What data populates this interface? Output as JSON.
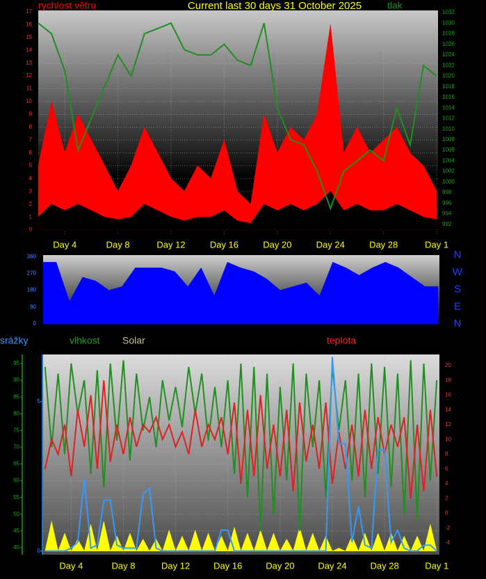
{
  "chart_data": [
    {
      "type": "line",
      "title": "Current last 30 days 31 October 2025",
      "grid": true,
      "x": [
        0,
        1,
        2,
        3,
        4,
        5,
        6,
        7,
        8,
        9,
        10,
        11,
        12,
        13,
        14,
        15,
        16,
        17,
        18,
        19,
        20,
        21,
        22,
        23,
        24,
        25,
        26,
        27,
        28,
        29,
        30
      ],
      "xlim": [
        0,
        30.1
      ],
      "xticks": [
        {
          "value": 2,
          "label": "Day 4"
        },
        {
          "value": 6,
          "label": "Day 8"
        },
        {
          "value": 10,
          "label": "Day 12"
        },
        {
          "value": 14,
          "label": "Day 16"
        },
        {
          "value": 18,
          "label": "Day 20"
        },
        {
          "value": 22,
          "label": "Day 24"
        },
        {
          "value": 26,
          "label": "Day 28"
        },
        {
          "value": 30,
          "label": "Day 1"
        }
      ],
      "ylim": [
        -0.4,
        17.1
      ],
      "yticks": [
        0,
        1,
        2,
        3,
        4,
        5,
        6,
        7,
        8,
        9,
        10,
        11,
        12,
        13,
        14,
        15,
        16,
        17
      ],
      "y2lim": [
        990,
        1032.4
      ],
      "y2ticks": [
        992,
        994,
        996,
        998,
        1000,
        1002,
        1004,
        1006,
        1008,
        1010,
        1012,
        1014,
        1016,
        1018,
        1020,
        1022,
        1024,
        1026,
        1028,
        1030,
        1032
      ],
      "series": [
        {
          "name": "rychlost větru",
          "color": "#ff0000",
          "style": "area",
          "values": [
            5,
            10,
            6,
            9,
            7,
            5,
            3,
            5,
            8,
            6,
            4,
            3,
            5,
            4,
            7,
            3,
            2,
            9,
            6,
            8,
            7,
            9,
            16,
            6,
            8,
            6,
            7,
            8,
            6,
            5,
            3
          ]
        },
        {
          "color": "#000000",
          "style": "area",
          "values": [
            1,
            2,
            1.5,
            2,
            1.5,
            1,
            0.8,
            1,
            2,
            1.5,
            1,
            0.7,
            1,
            1,
            1.5,
            0.7,
            0.5,
            2,
            1.5,
            2,
            1.5,
            2,
            3,
            1.5,
            2,
            1.5,
            1.5,
            2,
            1.5,
            1,
            0.8
          ]
        },
        {
          "name": "tlak",
          "color": "#1f8f1f",
          "style": "line",
          "axis": "y2",
          "values": [
            1030,
            1028,
            1021,
            1006,
            1012,
            1018,
            1024,
            1020,
            1028,
            1029,
            1030,
            1025,
            1024,
            1024,
            1026,
            1023,
            1022,
            1030,
            1014,
            1008,
            1007,
            1002,
            995,
            1002,
            1004,
            1006,
            1004,
            1014,
            1007,
            1022,
            1020
          ]
        }
      ]
    },
    {
      "type": "line",
      "grid": false,
      "x": [
        0,
        1,
        2,
        3,
        4,
        5,
        6,
        7,
        8,
        9,
        10,
        11,
        12,
        13,
        14,
        15,
        16,
        17,
        18,
        19,
        20,
        21,
        22,
        23,
        24,
        25,
        26,
        27,
        28,
        29,
        30
      ],
      "xlim": [
        0,
        30.1
      ],
      "ylim": [
        -7,
        368
      ],
      "yticks": [
        0,
        90,
        180,
        270,
        360
      ],
      "side_labels": [
        "N",
        "W",
        "S",
        "E",
        "N"
      ],
      "series": [
        {
          "color": "#0000ff",
          "style": "area",
          "values": [
            330,
            330,
            120,
            250,
            230,
            180,
            200,
            300,
            300,
            300,
            280,
            200,
            300,
            150,
            330,
            300,
            280,
            240,
            180,
            200,
            220,
            150,
            330,
            300,
            260,
            300,
            330,
            300,
            250,
            200,
            200
          ]
        }
      ]
    },
    {
      "type": "line",
      "grid": true,
      "x": [
        0,
        0.5,
        1,
        1.5,
        2,
        2.5,
        3,
        3.5,
        4,
        4.5,
        5,
        5.5,
        6,
        6.5,
        7,
        7.5,
        8,
        8.5,
        9,
        9.5,
        10,
        10.5,
        11,
        11.5,
        12,
        12.5,
        13,
        13.5,
        14,
        14.5,
        15,
        15.5,
        16,
        16.5,
        17,
        17.5,
        18,
        18.5,
        19,
        19.5,
        20,
        20.5,
        21,
        21.5,
        22,
        22.5,
        23,
        23.5,
        24,
        24.5,
        25,
        25.5,
        26,
        26.5,
        27,
        27.5,
        28,
        28.5,
        29,
        29.5,
        30
      ],
      "xlim": [
        -0.15,
        30.2
      ],
      "xticks": [
        {
          "value": 2,
          "label": "Day 4"
        },
        {
          "value": 6,
          "label": "Day 8"
        },
        {
          "value": 10,
          "label": "Day 12"
        },
        {
          "value": 14,
          "label": "Day 16"
        },
        {
          "value": 18,
          "label": "Day 20"
        },
        {
          "value": 22,
          "label": "Day 24"
        },
        {
          "value": 26,
          "label": "Day 28"
        },
        {
          "value": 30,
          "label": "Day 1"
        }
      ],
      "ylim": [
        37.9,
        97.7
      ],
      "yticks": [
        40,
        45,
        50,
        55,
        60,
        65,
        70,
        75,
        80,
        85,
        90,
        95
      ],
      "y2lim": [
        -5.6,
        21.5
      ],
      "y2ticks": [
        -4,
        -2,
        0,
        2,
        4,
        6,
        8,
        10,
        12,
        14,
        16,
        18,
        20
      ],
      "y3lim": [
        -0.12,
        6.58
      ],
      "y3ticks": [
        0,
        5
      ],
      "series": [
        {
          "name": "Solar",
          "color": "#ffff00",
          "style": "area",
          "axis": "y3",
          "values": [
            0,
            1.0,
            0,
            0.6,
            0,
            0.4,
            0,
            0.9,
            0,
            1.0,
            0,
            0.5,
            0,
            0.6,
            0,
            0.4,
            0,
            0.4,
            0,
            0.7,
            0,
            0.5,
            0,
            0.7,
            0,
            0.6,
            0,
            0.5,
            0,
            0.8,
            0,
            0.6,
            0,
            0.7,
            0,
            0.6,
            0,
            0.4,
            0,
            0.8,
            0,
            0.6,
            0,
            0.5,
            0,
            0.1,
            0,
            0.5,
            0,
            0.6,
            0,
            0.6,
            0,
            0.6,
            0,
            0.5,
            0,
            0.5,
            0,
            0.9,
            0
          ]
        },
        {
          "name": "vlhkost",
          "color": "#1f8f1f",
          "style": "line",
          "values": [
            94,
            70,
            92,
            68,
            95,
            80,
            90,
            62,
            93,
            58,
            95,
            72,
            96,
            66,
            92,
            75,
            85,
            70,
            90,
            78,
            88,
            76,
            94,
            80,
            92,
            72,
            88,
            70,
            90,
            62,
            95,
            55,
            94,
            45,
            92,
            50,
            88,
            60,
            95,
            45,
            92,
            70,
            90,
            55,
            94,
            75,
            90,
            60,
            92,
            55,
            95,
            62,
            94,
            58,
            92,
            50,
            96,
            48,
            95,
            60,
            90
          ]
        },
        {
          "name": "teplota",
          "color": "#e02020",
          "style": "line",
          "axis": "y2",
          "values": [
            6,
            10,
            8,
            12,
            5,
            14,
            9,
            16,
            6,
            18,
            7,
            12,
            8,
            13,
            9,
            12,
            11,
            13,
            10,
            12,
            9,
            11,
            8,
            14,
            9,
            12,
            10,
            13,
            8,
            15,
            4,
            14,
            5,
            16,
            6,
            12,
            5,
            14,
            3,
            15,
            7,
            12,
            6,
            15,
            4,
            11,
            6,
            12,
            5,
            14,
            6,
            13,
            8,
            12,
            9,
            13,
            2,
            12,
            3,
            14,
            5
          ]
        },
        {
          "name": "srážky",
          "color": "#3399ff",
          "style": "line",
          "axis": "y3",
          "values": [
            0,
            0,
            0,
            0,
            0.1,
            0.3,
            2.4,
            0.1,
            0.2,
            1.7,
            1.7,
            0.2,
            0.1,
            0.1,
            0.1,
            1.9,
            2.1,
            0.1,
            0,
            0,
            0,
            0,
            0,
            0,
            0,
            0,
            0,
            0.7,
            0.7,
            0,
            0,
            0,
            0,
            0,
            0,
            0,
            0,
            0,
            0,
            0,
            0,
            0,
            0,
            0,
            6.5,
            3.6,
            3.6,
            0.3,
            1.5,
            0.2,
            0.1,
            3.4,
            3.4,
            0.3,
            0.7,
            0.1,
            0,
            0,
            0.2,
            0.2,
            0
          ]
        }
      ]
    }
  ]
}
